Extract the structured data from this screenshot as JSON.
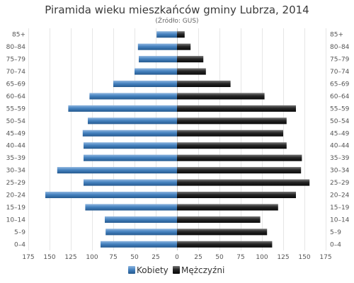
{
  "chart_data": {
    "type": "bar",
    "orientation": "horizontal-population-pyramid",
    "title": "Piramida wieku mieszkańców gminy Lubrza, 2014",
    "subtitle": "(Źródło: GUS)",
    "categories": [
      "0–4",
      "5–9",
      "10–14",
      "15–19",
      "20–24",
      "25–29",
      "30–34",
      "35–39",
      "40–44",
      "45–49",
      "50–54",
      "55–59",
      "60–64",
      "65–69",
      "70–74",
      "75–79",
      "80–84",
      "85+"
    ],
    "series": [
      {
        "name": "Kobiety",
        "color": "#3d7ab8",
        "side": "left",
        "values": [
          90,
          84,
          85,
          108,
          155,
          110,
          141,
          110,
          110,
          111,
          105,
          128,
          103,
          75,
          50,
          45,
          46,
          24
        ]
      },
      {
        "name": "Mężczyźni",
        "color": "#1f1f1f",
        "side": "right",
        "values": [
          112,
          106,
          98,
          119,
          140,
          156,
          146,
          147,
          129,
          125,
          129,
          140,
          103,
          63,
          34,
          31,
          16,
          9
        ]
      }
    ],
    "xlim": [
      -175,
      175
    ],
    "xticks": [
      {
        "value": -175,
        "label": "175"
      },
      {
        "value": -150,
        "label": "150"
      },
      {
        "value": -125,
        "label": "125"
      },
      {
        "value": -100,
        "label": "100"
      },
      {
        "value": -75,
        "label": "75"
      },
      {
        "value": -50,
        "label": "50"
      },
      {
        "value": -25,
        "label": "25"
      },
      {
        "value": 0,
        "label": "0"
      },
      {
        "value": 25,
        "label": "25"
      },
      {
        "value": 50,
        "label": "50"
      },
      {
        "value": 75,
        "label": "75"
      },
      {
        "value": 100,
        "label": "100"
      },
      {
        "value": 125,
        "label": "125"
      },
      {
        "value": 150,
        "label": "150"
      },
      {
        "value": 175,
        "label": "175"
      }
    ],
    "grid": "vertical",
    "legend": "bottom-center",
    "category_labels": "both-sides"
  }
}
